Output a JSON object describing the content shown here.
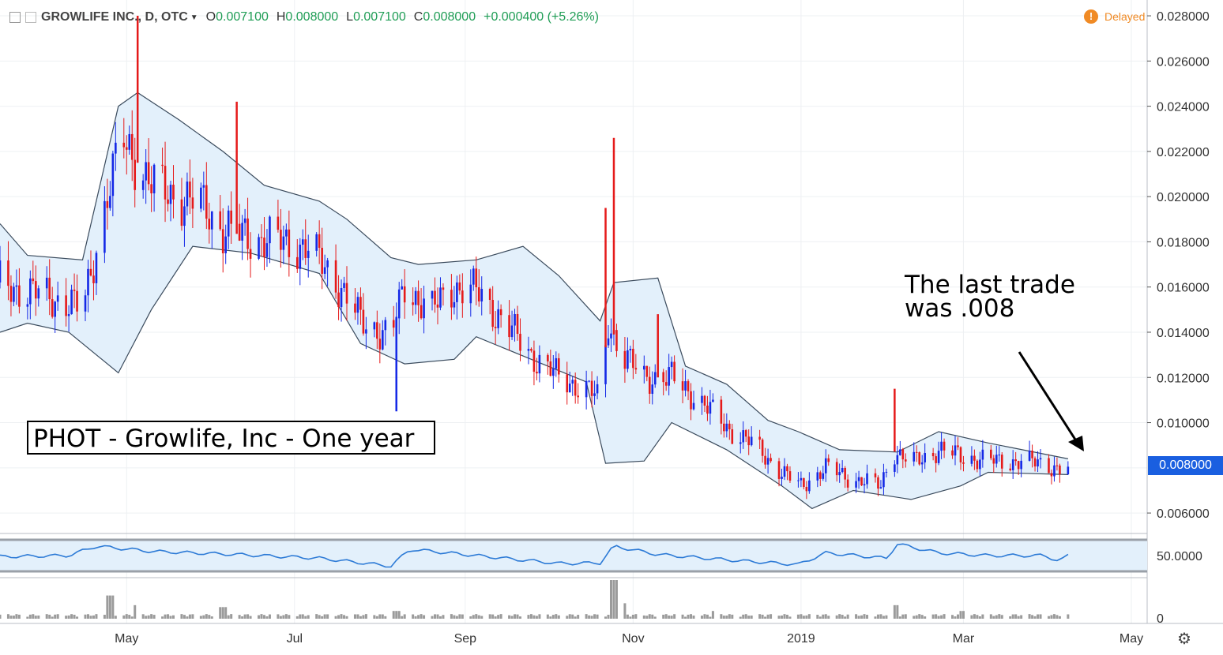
{
  "header": {
    "symbol": "GROWLIFE INC., D, OTC",
    "open_label": "O",
    "open": "0.007100",
    "high_label": "H",
    "high": "0.008000",
    "low_label": "L",
    "low": "0.007100",
    "close_label": "C",
    "close": "0.008000",
    "change": "+0.000400 (+5.26%)",
    "delayed": "Delayed"
  },
  "last_price_label": "0.008000",
  "annotations": {
    "box": "PHOT - Growlife, Inc - One year",
    "note": "The last trade\nwas .008"
  },
  "chart_data": {
    "type": "candlestick",
    "price_axis": {
      "ylim": [
        0.0052,
        0.0287
      ],
      "ticks": [
        "0.028000",
        "0.026000",
        "0.024000",
        "0.022000",
        "0.020000",
        "0.018000",
        "0.016000",
        "0.014000",
        "0.012000",
        "0.010000",
        "0.008000",
        "0.006000"
      ]
    },
    "rsi_axis": {
      "ticks": [
        "50.0000"
      ],
      "ylim": [
        0,
        100
      ],
      "band": [
        30,
        70
      ]
    },
    "volume_axis": {
      "ticks": [
        "0"
      ]
    },
    "x_labels": [
      "May",
      "Jul",
      "Sep",
      "Nov",
      "2019",
      "Mar",
      "May"
    ],
    "x_dates": [
      "2018-05-01",
      "2018-07-01",
      "2018-09-01",
      "2018-11-01",
      "2019-01-01",
      "2019-03-01",
      "2019-05-01"
    ],
    "x_range": [
      "2018-03-16",
      "2019-05-01"
    ],
    "close_series": [
      [
        "2018-03-16",
        0.0162
      ],
      [
        "2018-03-26",
        0.0158
      ],
      [
        "2018-04-05",
        0.0155
      ],
      [
        "2018-04-15",
        0.015
      ],
      [
        "2018-04-20",
        0.0178
      ],
      [
        "2018-04-25",
        0.0205
      ],
      [
        "2018-04-30",
        0.0225
      ],
      [
        "2018-05-05",
        0.0215
      ],
      [
        "2018-05-10",
        0.0205
      ],
      [
        "2018-05-20",
        0.02
      ],
      [
        "2018-05-30",
        0.0195
      ],
      [
        "2018-06-05",
        0.0185
      ],
      [
        "2018-06-15",
        0.0182
      ],
      [
        "2018-06-25",
        0.018
      ],
      [
        "2018-07-05",
        0.0178
      ],
      [
        "2018-07-15",
        0.0165
      ],
      [
        "2018-07-25",
        0.0145
      ],
      [
        "2018-08-05",
        0.0138
      ],
      [
        "2018-08-10",
        0.016
      ],
      [
        "2018-08-20",
        0.015
      ],
      [
        "2018-08-28",
        0.016
      ],
      [
        "2018-09-05",
        0.0158
      ],
      [
        "2018-09-15",
        0.0145
      ],
      [
        "2018-09-25",
        0.013
      ],
      [
        "2018-10-05",
        0.012
      ],
      [
        "2018-10-15",
        0.0115
      ],
      [
        "2018-10-20",
        0.011
      ],
      [
        "2018-10-23",
        0.0145
      ],
      [
        "2018-10-28",
        0.013
      ],
      [
        "2018-11-05",
        0.012
      ],
      [
        "2018-11-15",
        0.012
      ],
      [
        "2018-11-25",
        0.011
      ],
      [
        "2018-12-05",
        0.0098
      ],
      [
        "2018-12-15",
        0.009
      ],
      [
        "2018-12-25",
        0.0078
      ],
      [
        "2019-01-01",
        0.0072
      ],
      [
        "2019-01-10",
        0.008
      ],
      [
        "2019-01-20",
        0.0075
      ],
      [
        "2019-01-30",
        0.0072
      ],
      [
        "2019-02-03",
        0.0088
      ],
      [
        "2019-02-10",
        0.0082
      ],
      [
        "2019-02-20",
        0.0088
      ],
      [
        "2019-03-01",
        0.0085
      ],
      [
        "2019-03-10",
        0.0083
      ],
      [
        "2019-03-20",
        0.0083
      ],
      [
        "2019-03-30",
        0.0082
      ],
      [
        "2019-04-06",
        0.0079
      ],
      [
        "2019-04-08",
        0.008
      ]
    ],
    "spikes": [
      {
        "date": "2018-05-05",
        "high": 0.028
      },
      {
        "date": "2018-06-10",
        "high": 0.0242
      },
      {
        "date": "2018-08-07",
        "low": 0.0105
      },
      {
        "date": "2018-10-22",
        "high": 0.0195
      },
      {
        "date": "2018-10-25",
        "high": 0.0226
      },
      {
        "date": "2018-11-10",
        "high": 0.0148
      },
      {
        "date": "2019-02-04",
        "high": 0.0115
      }
    ],
    "bollinger": {
      "upper": [
        [
          "2018-03-16",
          0.0188
        ],
        [
          "2018-03-26",
          0.0174
        ],
        [
          "2018-04-15",
          0.0172
        ],
        [
          "2018-04-28",
          0.024
        ],
        [
          "2018-05-05",
          0.0246
        ],
        [
          "2018-05-20",
          0.0234
        ],
        [
          "2018-06-05",
          0.022
        ],
        [
          "2018-06-20",
          0.0205
        ],
        [
          "2018-07-10",
          0.0198
        ],
        [
          "2018-07-20",
          0.019
        ],
        [
          "2018-08-05",
          0.0173
        ],
        [
          "2018-08-15",
          0.017
        ],
        [
          "2018-09-05",
          0.0172
        ],
        [
          "2018-09-22",
          0.0178
        ],
        [
          "2018-10-05",
          0.0165
        ],
        [
          "2018-10-20",
          0.0145
        ],
        [
          "2018-10-25",
          0.0162
        ],
        [
          "2018-11-10",
          0.0164
        ],
        [
          "2018-11-20",
          0.0125
        ],
        [
          "2018-12-05",
          0.0117
        ],
        [
          "2018-12-20",
          0.0101
        ],
        [
          "2018-12-31",
          0.0096
        ],
        [
          "2019-01-15",
          0.0088
        ],
        [
          "2019-02-05",
          0.0087
        ],
        [
          "2019-02-20",
          0.0096
        ],
        [
          "2019-03-10",
          0.0091
        ],
        [
          "2019-04-08",
          0.0084
        ]
      ],
      "lower": [
        [
          "2018-03-16",
          0.014
        ],
        [
          "2018-03-26",
          0.0144
        ],
        [
          "2018-04-10",
          0.014
        ],
        [
          "2018-04-28",
          0.0122
        ],
        [
          "2018-05-10",
          0.015
        ],
        [
          "2018-05-25",
          0.0178
        ],
        [
          "2018-06-15",
          0.0175
        ],
        [
          "2018-07-10",
          0.0166
        ],
        [
          "2018-07-25",
          0.0135
        ],
        [
          "2018-08-10",
          0.0126
        ],
        [
          "2018-08-28",
          0.0128
        ],
        [
          "2018-09-05",
          0.0138
        ],
        [
          "2018-09-25",
          0.0128
        ],
        [
          "2018-10-15",
          0.0118
        ],
        [
          "2018-10-22",
          0.0082
        ],
        [
          "2018-11-05",
          0.0083
        ],
        [
          "2018-11-15",
          0.01
        ],
        [
          "2018-12-05",
          0.0088
        ],
        [
          "2018-12-25",
          0.0072
        ],
        [
          "2019-01-05",
          0.0062
        ],
        [
          "2019-01-20",
          0.007
        ],
        [
          "2019-02-10",
          0.0066
        ],
        [
          "2019-02-28",
          0.0072
        ],
        [
          "2019-03-10",
          0.0078
        ],
        [
          "2019-04-08",
          0.0077
        ]
      ]
    },
    "rsi_series": [
      [
        "2018-03-16",
        48
      ],
      [
        "2018-04-10",
        50
      ],
      [
        "2018-04-20",
        68
      ],
      [
        "2018-05-10",
        58
      ],
      [
        "2018-06-10",
        52
      ],
      [
        "2018-07-10",
        45
      ],
      [
        "2018-08-05",
        30
      ],
      [
        "2018-08-12",
        62
      ],
      [
        "2018-09-05",
        50
      ],
      [
        "2018-10-05",
        35
      ],
      [
        "2018-10-20",
        36
      ],
      [
        "2018-10-25",
        68
      ],
      [
        "2018-11-10",
        52
      ],
      [
        "2018-12-10",
        40
      ],
      [
        "2018-12-31",
        33
      ],
      [
        "2019-01-10",
        55
      ],
      [
        "2019-02-01",
        45
      ],
      [
        "2019-02-05",
        72
      ],
      [
        "2019-02-20",
        55
      ],
      [
        "2019-03-10",
        50
      ],
      [
        "2019-03-30",
        50
      ],
      [
        "2019-04-05",
        40
      ],
      [
        "2019-04-08",
        50
      ]
    ],
    "volume_peaks": [
      [
        "2018-04-25",
        0.6
      ],
      [
        "2018-05-05",
        0.35
      ],
      [
        "2018-06-05",
        0.3
      ],
      [
        "2018-08-07",
        0.2
      ],
      [
        "2018-10-25",
        1.0
      ],
      [
        "2018-10-28",
        0.4
      ],
      [
        "2018-12-01",
        0.2
      ],
      [
        "2019-02-04",
        0.35
      ],
      [
        "2019-03-01",
        0.2
      ]
    ]
  }
}
